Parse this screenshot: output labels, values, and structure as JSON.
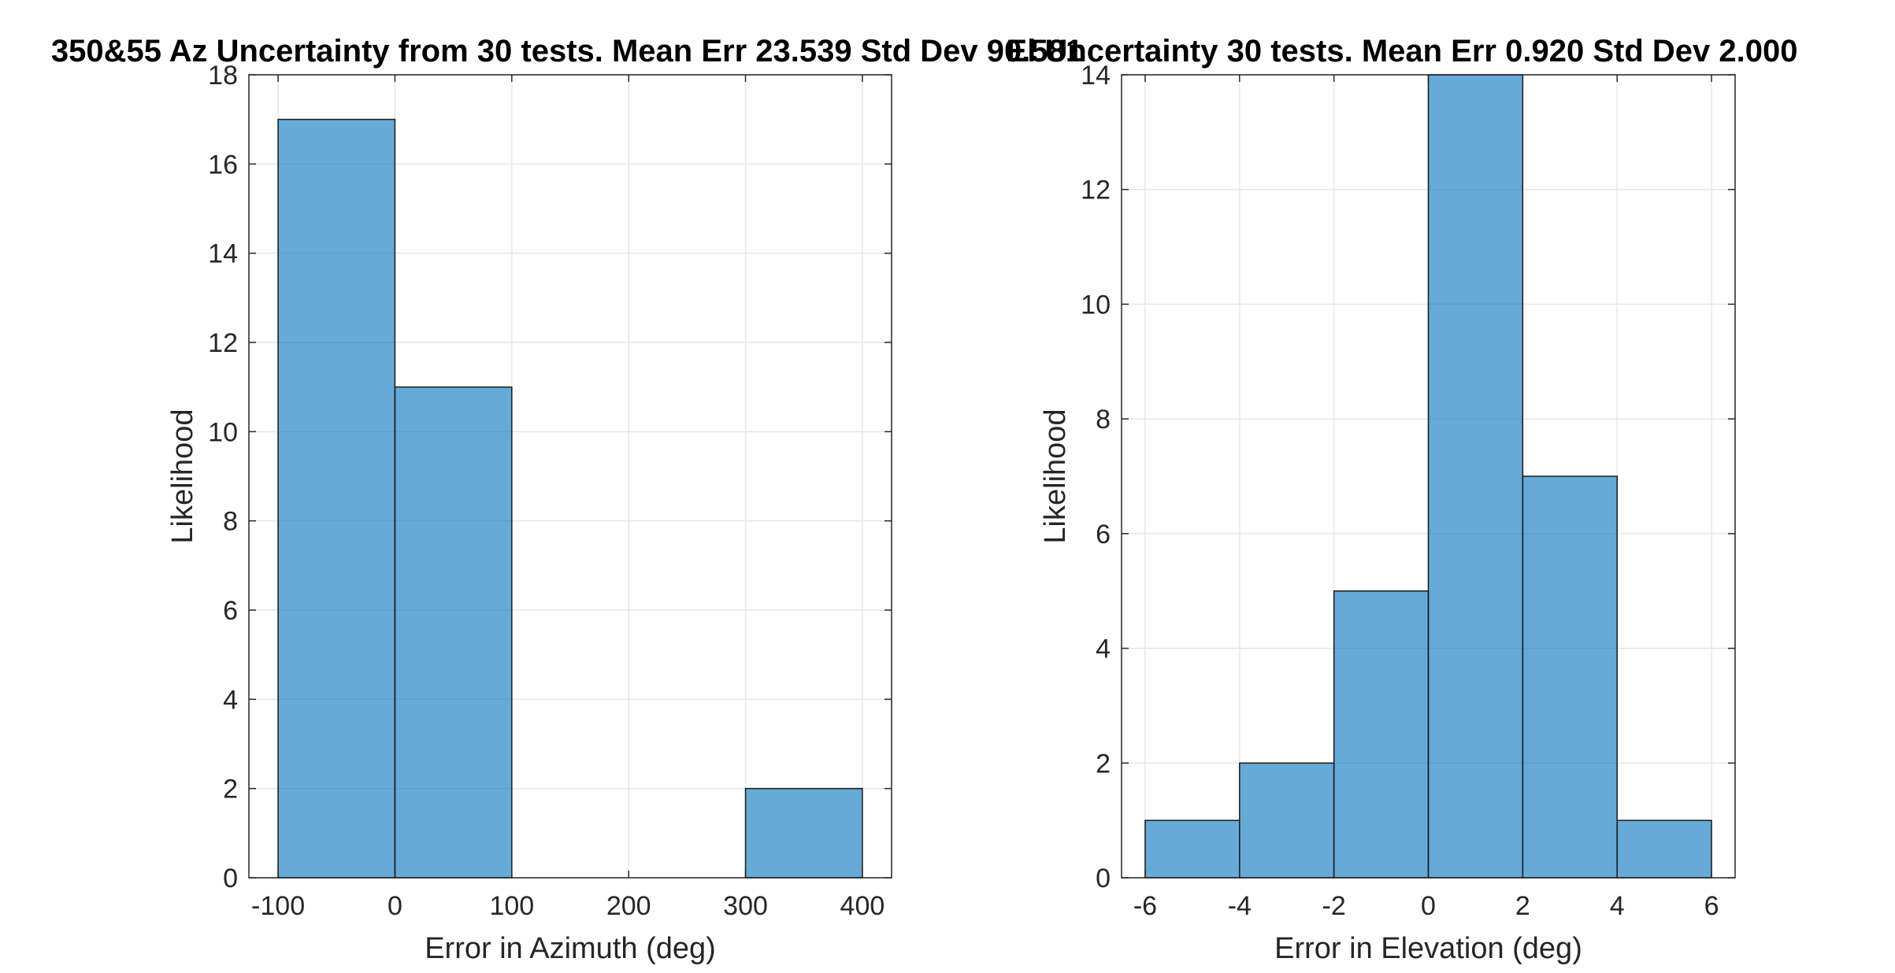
{
  "chart_data": [
    {
      "type": "bar",
      "subtype": "histogram",
      "title": "350&55 Az Uncertainty from 30 tests. Mean Err 23.539 Std Dev 90.581",
      "xlabel": "Error in Azimuth (deg)",
      "ylabel": "Likelihood",
      "xlim": [
        -125,
        425
      ],
      "ylim": [
        0,
        18
      ],
      "xticks": [
        -100,
        0,
        100,
        200,
        300,
        400
      ],
      "yticks": [
        0,
        2,
        4,
        6,
        8,
        10,
        12,
        14,
        16,
        18
      ],
      "bins": [
        {
          "start": -100,
          "end": 0,
          "count": 17
        },
        {
          "start": 0,
          "end": 100,
          "count": 11
        },
        {
          "start": 100,
          "end": 200,
          "count": 0
        },
        {
          "start": 200,
          "end": 300,
          "count": 0
        },
        {
          "start": 300,
          "end": 400,
          "count": 2
        }
      ],
      "grid": true,
      "bar_color": "#0072BD"
    },
    {
      "type": "bar",
      "subtype": "histogram",
      "title": "El Uncertainty 30 tests. Mean Err 0.920 Std Dev 2.000",
      "xlabel": "Error in Elevation (deg)",
      "ylabel": "Likelihood",
      "xlim": [
        -6.5,
        6.5
      ],
      "ylim": [
        0,
        14
      ],
      "xticks": [
        -6,
        -4,
        -2,
        0,
        2,
        4,
        6
      ],
      "yticks": [
        0,
        2,
        4,
        6,
        8,
        10,
        12,
        14
      ],
      "bins": [
        {
          "start": -6,
          "end": -4,
          "count": 1
        },
        {
          "start": -4,
          "end": -2,
          "count": 2
        },
        {
          "start": -2,
          "end": 0,
          "count": 5
        },
        {
          "start": 0,
          "end": 2,
          "count": 14
        },
        {
          "start": 2,
          "end": 4,
          "count": 7
        },
        {
          "start": 4,
          "end": 6,
          "count": 1
        }
      ],
      "grid": true,
      "bar_color": "#0072BD"
    }
  ]
}
